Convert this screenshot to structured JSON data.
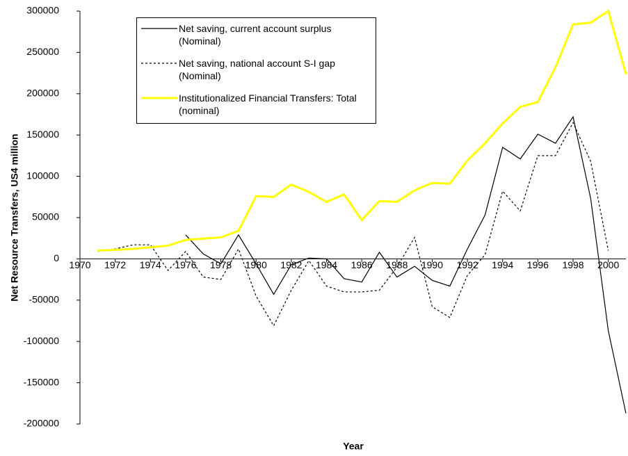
{
  "chart_data": {
    "type": "line",
    "x_label": "Year",
    "y_label": "Net Resource Transfers, US4 million",
    "x": [
      1971,
      1972,
      1973,
      1974,
      1975,
      1976,
      1977,
      1978,
      1979,
      1980,
      1981,
      1982,
      1983,
      1984,
      1985,
      1986,
      1987,
      1988,
      1989,
      1990,
      1991,
      1992,
      1993,
      1994,
      1995,
      1996,
      1997,
      1998,
      1999,
      2000,
      2001
    ],
    "xlim": [
      1970,
      2001
    ],
    "xticks": [
      1970,
      1972,
      1974,
      1976,
      1978,
      1980,
      1982,
      1984,
      1986,
      1988,
      1990,
      1992,
      1994,
      1996,
      1998,
      2000
    ],
    "ylim": [
      -200000,
      300000
    ],
    "yticks": [
      -200000,
      -150000,
      -100000,
      -50000,
      0,
      50000,
      100000,
      150000,
      200000,
      250000,
      300000
    ],
    "series": [
      {
        "name": "Net saving, current account surplus (Nominal)",
        "color": "#000000",
        "style": "solid",
        "values": [
          null,
          null,
          null,
          null,
          null,
          29000,
          6000,
          -6000,
          29000,
          -6000,
          -43000,
          -7000,
          1000,
          0,
          -24000,
          -28000,
          8000,
          -22000,
          -9000,
          -26000,
          -33000,
          12000,
          53000,
          135000,
          121000,
          151000,
          140000,
          172000,
          73000,
          -87000,
          -187000
        ]
      },
      {
        "name": "Net saving, national account S-I gap (Nominal)",
        "color": "#000000",
        "style": "dotted",
        "values": [
          9000,
          12000,
          17000,
          17000,
          -14000,
          9000,
          -22000,
          -25000,
          12000,
          -45000,
          -81000,
          -38000,
          -2000,
          -33000,
          -40000,
          -40000,
          -38000,
          -10000,
          26000,
          -58000,
          -71000,
          -20000,
          5000,
          82000,
          58000,
          125000,
          125000,
          165000,
          118000,
          10000,
          null
        ]
      },
      {
        "name": "Institutionalized Financial Transfers: Total (nominal)",
        "color": "#ffff00",
        "style": "thick",
        "values": [
          10000,
          11000,
          12000,
          14000,
          16000,
          23000,
          24500,
          26000,
          34000,
          76000,
          75000,
          90000,
          81000,
          69000,
          78000,
          47000,
          70000,
          69000,
          83000,
          92000,
          91000,
          119000,
          140000,
          164000,
          184000,
          190000,
          232000,
          284000,
          286000,
          300000,
          224000
        ]
      }
    ]
  }
}
